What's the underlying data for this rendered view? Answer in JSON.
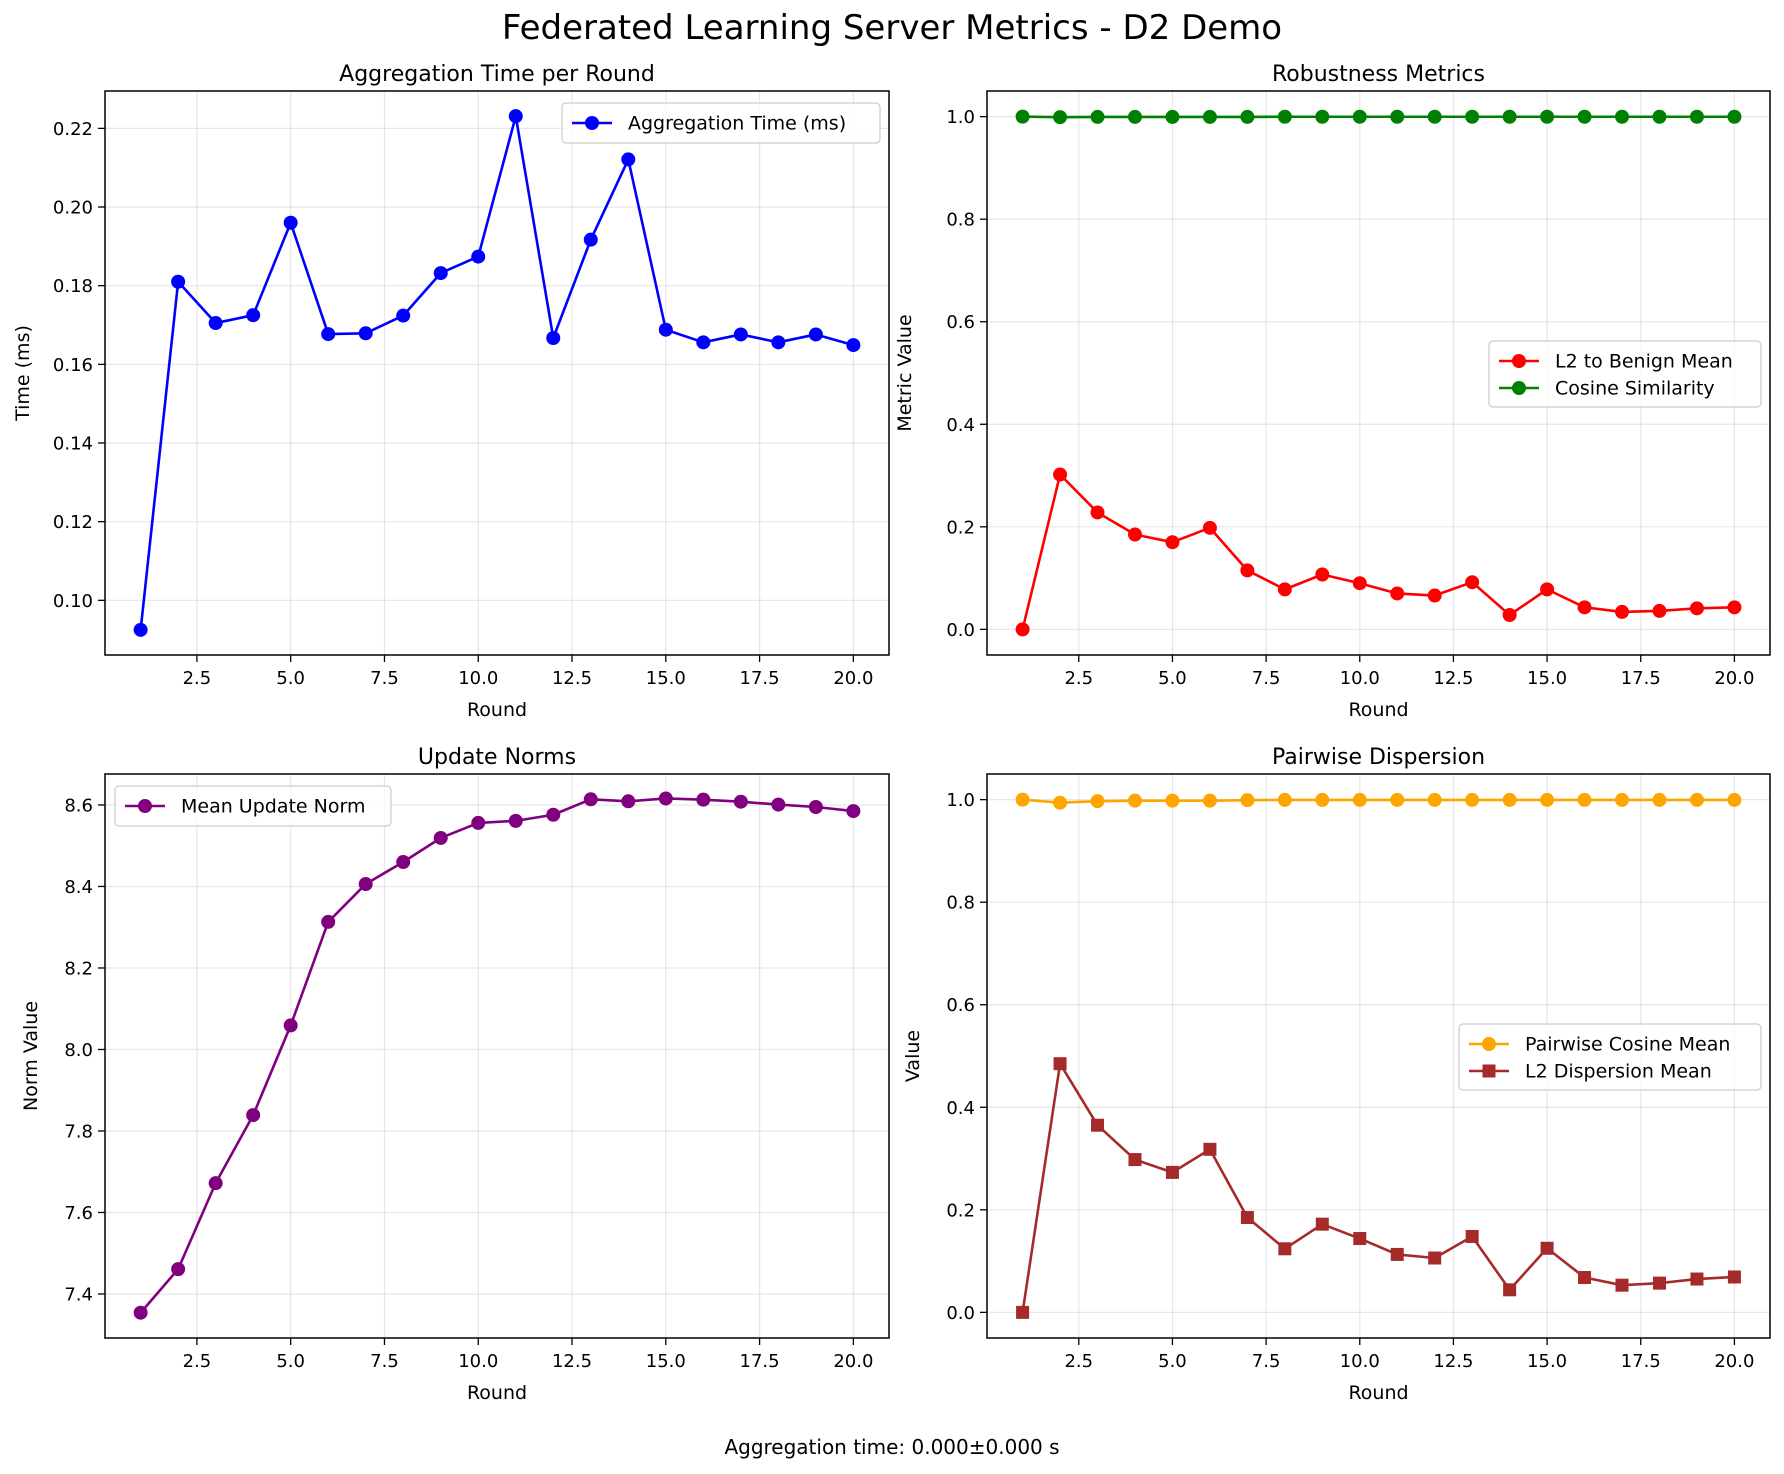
{
  "figure": {
    "title": "Federated Learning Server Metrics - D2 Demo",
    "footer": "Aggregation time: 0.000±0.000 s"
  },
  "chart_data": [
    {
      "id": "agg",
      "type": "line",
      "title": "Aggregation Time per Round",
      "xlabel": "Round",
      "ylabel": "Time (ms)",
      "xlim": [
        0.05,
        20.95
      ],
      "ylim": [
        0.0861,
        0.2295
      ],
      "xticks": [
        2.5,
        5.0,
        7.5,
        10.0,
        12.5,
        15.0,
        17.5,
        20.0
      ],
      "xtick_labels": [
        "2.5",
        "5.0",
        "7.5",
        "10.0",
        "12.5",
        "15.0",
        "17.5",
        "20.0"
      ],
      "yticks": [
        0.1,
        0.12,
        0.14,
        0.16,
        0.18,
        0.2,
        0.22
      ],
      "ytick_labels": [
        "0.10",
        "0.12",
        "0.14",
        "0.16",
        "0.18",
        "0.20",
        "0.22"
      ],
      "grid": true,
      "legend": "top-right",
      "x": [
        1,
        2,
        3,
        4,
        5,
        6,
        7,
        8,
        9,
        10,
        11,
        12,
        13,
        14,
        15,
        16,
        17,
        18,
        19,
        20
      ],
      "series": [
        {
          "name": "Aggregation Time (ms)",
          "color": "#0000ff",
          "marker": "circle",
          "values": [
            0.0925,
            0.181,
            0.1705,
            0.1725,
            0.196,
            0.1677,
            0.1679,
            0.1724,
            0.1832,
            0.1874,
            0.2231,
            0.1667,
            0.1917,
            0.2121,
            0.1688,
            0.1656,
            0.1676,
            0.1656,
            0.1676,
            0.1649
          ]
        }
      ]
    },
    {
      "id": "rob",
      "type": "line",
      "title": "Robustness Metrics",
      "xlabel": "Round",
      "ylabel": "Metric Value",
      "xlim": [
        0.05,
        20.95
      ],
      "ylim": [
        -0.05,
        1.05
      ],
      "xticks": [
        2.5,
        5.0,
        7.5,
        10.0,
        12.5,
        15.0,
        17.5,
        20.0
      ],
      "xtick_labels": [
        "2.5",
        "5.0",
        "7.5",
        "10.0",
        "12.5",
        "15.0",
        "17.5",
        "20.0"
      ],
      "yticks": [
        0.0,
        0.2,
        0.4,
        0.6,
        0.8,
        1.0
      ],
      "ytick_labels": [
        "0.0",
        "0.2",
        "0.4",
        "0.6",
        "0.8",
        "1.0"
      ],
      "grid": true,
      "legend": "center-right",
      "x": [
        1,
        2,
        3,
        4,
        5,
        6,
        7,
        8,
        9,
        10,
        11,
        12,
        13,
        14,
        15,
        16,
        17,
        18,
        19,
        20
      ],
      "series": [
        {
          "name": "L2 to Benign Mean",
          "color": "#ff0000",
          "marker": "circle",
          "values": [
            0.0,
            0.302,
            0.228,
            0.185,
            0.17,
            0.198,
            0.115,
            0.078,
            0.107,
            0.09,
            0.07,
            0.066,
            0.092,
            0.028,
            0.078,
            0.043,
            0.034,
            0.036,
            0.041,
            0.043
          ]
        },
        {
          "name": "Cosine Similarity",
          "color": "#008000",
          "marker": "circle",
          "values": [
            1.0,
            0.999,
            0.9995,
            0.9995,
            0.9995,
            0.9995,
            0.9995,
            0.9998,
            0.9998,
            0.9998,
            0.9998,
            0.9998,
            0.9998,
            0.9998,
            0.9998,
            0.9998,
            0.9998,
            0.9998,
            0.9998,
            0.9998
          ]
        }
      ]
    },
    {
      "id": "norm",
      "type": "line",
      "title": "Update Norms",
      "xlabel": "Round",
      "ylabel": "Norm Value",
      "xlim": [
        0.05,
        20.95
      ],
      "ylim": [
        7.292,
        8.676
      ],
      "xticks": [
        2.5,
        5.0,
        7.5,
        10.0,
        12.5,
        15.0,
        17.5,
        20.0
      ],
      "xtick_labels": [
        "2.5",
        "5.0",
        "7.5",
        "10.0",
        "12.5",
        "15.0",
        "17.5",
        "20.0"
      ],
      "yticks": [
        7.4,
        7.6,
        7.8,
        8.0,
        8.2,
        8.4,
        8.6
      ],
      "ytick_labels": [
        "7.4",
        "7.6",
        "7.8",
        "8.0",
        "8.2",
        "8.4",
        "8.6"
      ],
      "grid": true,
      "legend": "top-left",
      "x": [
        1,
        2,
        3,
        4,
        5,
        6,
        7,
        8,
        9,
        10,
        11,
        12,
        13,
        14,
        15,
        16,
        17,
        18,
        19,
        20
      ],
      "series": [
        {
          "name": "Mean Update Norm",
          "color": "#800080",
          "marker": "circle",
          "values": [
            7.354,
            7.461,
            7.672,
            7.839,
            8.059,
            8.313,
            8.406,
            8.46,
            8.519,
            8.556,
            8.561,
            8.576,
            8.614,
            8.609,
            8.616,
            8.613,
            8.608,
            8.601,
            8.595,
            8.585
          ]
        }
      ]
    },
    {
      "id": "disp",
      "type": "line",
      "title": "Pairwise Dispersion",
      "xlabel": "Round",
      "ylabel": "Value",
      "xlim": [
        0.05,
        20.95
      ],
      "ylim": [
        -0.05,
        1.05
      ],
      "xticks": [
        2.5,
        5.0,
        7.5,
        10.0,
        12.5,
        15.0,
        17.5,
        20.0
      ],
      "xtick_labels": [
        "2.5",
        "5.0",
        "7.5",
        "10.0",
        "12.5",
        "15.0",
        "17.5",
        "20.0"
      ],
      "yticks": [
        0.0,
        0.2,
        0.4,
        0.6,
        0.8,
        1.0
      ],
      "ytick_labels": [
        "0.0",
        "0.2",
        "0.4",
        "0.6",
        "0.8",
        "1.0"
      ],
      "grid": true,
      "legend": "center-right",
      "x": [
        1,
        2,
        3,
        4,
        5,
        6,
        7,
        8,
        9,
        10,
        11,
        12,
        13,
        14,
        15,
        16,
        17,
        18,
        19,
        20
      ],
      "series": [
        {
          "name": "Pairwise Cosine Mean",
          "color": "#ffa500",
          "marker": "circle",
          "values": [
            1.0,
            0.994,
            0.997,
            0.998,
            0.998,
            0.998,
            0.999,
            0.9995,
            0.9995,
            0.9995,
            0.9995,
            0.9995,
            0.9995,
            0.9995,
            0.9995,
            0.9995,
            0.9995,
            0.9995,
            0.9995,
            0.9995
          ]
        },
        {
          "name": "L2 Dispersion Mean",
          "color": "#a52a2a",
          "marker": "square",
          "values": [
            0.0,
            0.485,
            0.365,
            0.298,
            0.273,
            0.318,
            0.185,
            0.124,
            0.172,
            0.144,
            0.113,
            0.106,
            0.148,
            0.044,
            0.125,
            0.068,
            0.053,
            0.057,
            0.065,
            0.069
          ]
        }
      ]
    }
  ]
}
